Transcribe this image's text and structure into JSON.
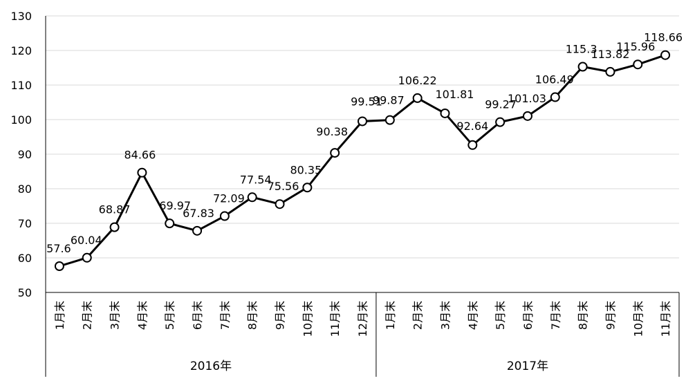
{
  "chart_data": {
    "type": "line",
    "title": "",
    "xlabel": "",
    "ylabel": "",
    "ylim": [
      50,
      130
    ],
    "y_ticks": [
      50,
      60,
      70,
      80,
      90,
      100,
      110,
      120,
      130
    ],
    "grid": true,
    "groups": [
      {
        "label": "2016年",
        "categories": [
          "1月末",
          "2月末",
          "3月末",
          "4月末",
          "5月末",
          "6月末",
          "7月末",
          "8月末",
          "9月末",
          "10月末",
          "11月末",
          "12月末"
        ],
        "values": [
          57.6,
          60.04,
          68.87,
          84.66,
          69.97,
          67.83,
          72.09,
          77.54,
          75.56,
          80.35,
          90.38,
          99.51
        ]
      },
      {
        "label": "2017年",
        "categories": [
          "1月末",
          "2月末",
          "3月末",
          "4月末",
          "5月末",
          "6月末",
          "7月末",
          "8月末",
          "9月末",
          "10月末",
          "11月末"
        ],
        "values": [
          99.87,
          106.22,
          101.81,
          92.64,
          99.27,
          101.03,
          106.49,
          115.3,
          113.82,
          115.96,
          118.66
        ]
      }
    ],
    "data_labels": [
      "57.6",
      "60.04",
      "68.87",
      "84.66",
      "69.97",
      "67.83",
      "72.09",
      "77.54",
      "75.56",
      "80.35",
      "90.38",
      "99.51",
      "99.87",
      "106.22",
      "101.81",
      "92.64",
      "99.27",
      "101.03",
      "106.49",
      "115.3",
      "113.82",
      "115.96",
      "118.66"
    ],
    "line_color": "#000000",
    "marker_fill": "#ffffff",
    "grid_color": "#d9d9d9"
  }
}
